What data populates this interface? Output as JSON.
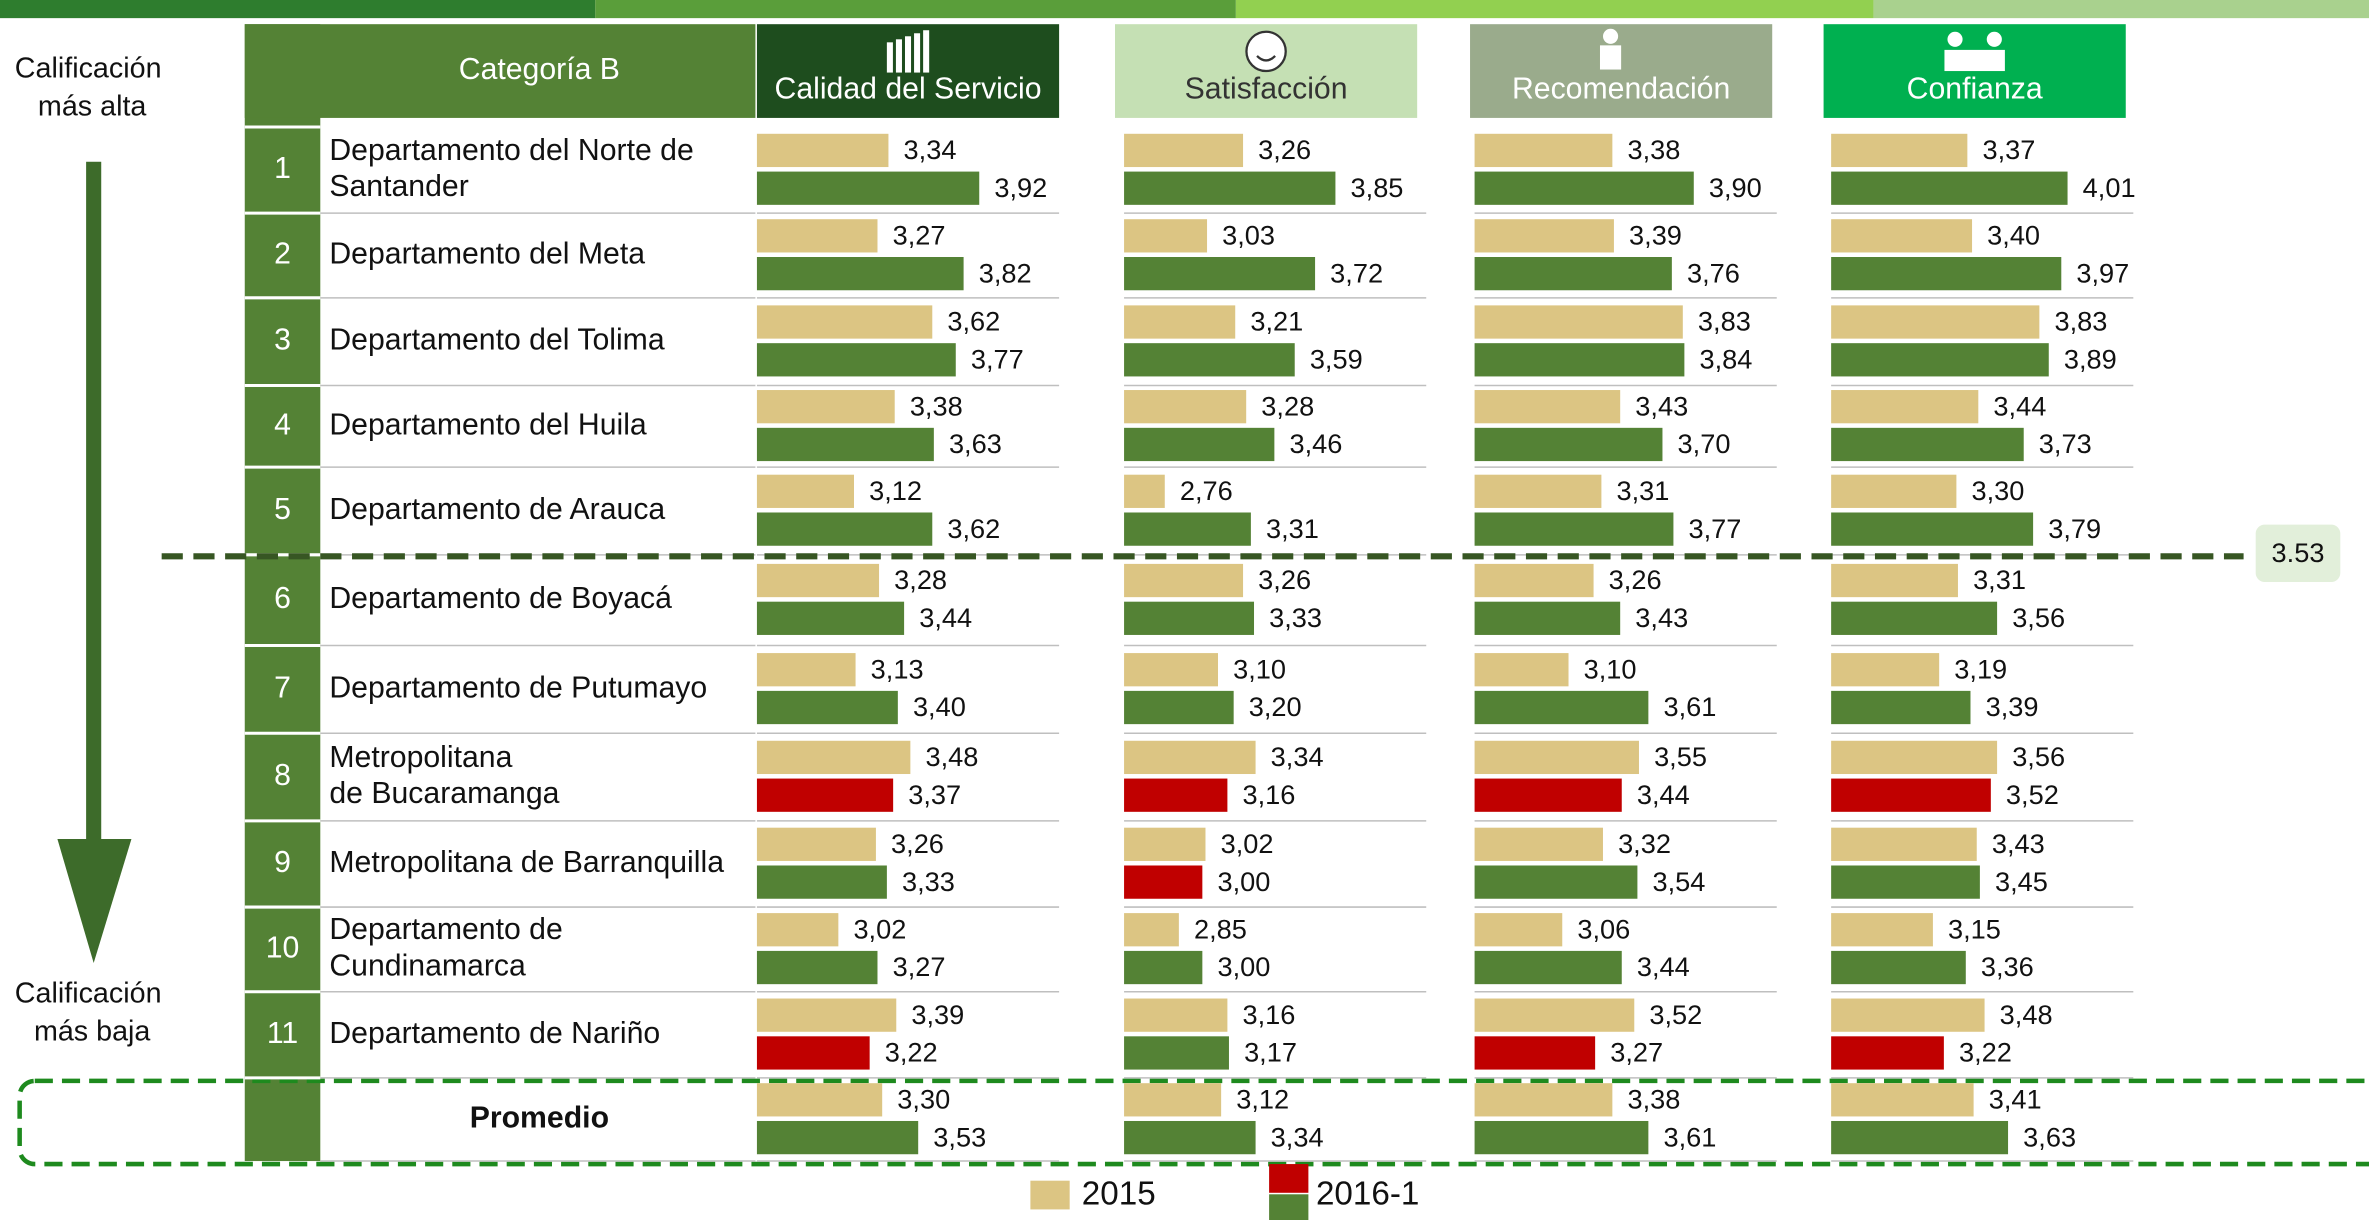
{
  "chart_data": {
    "type": "bar",
    "title": "Categoría B",
    "side_top": "Calificación más alta",
    "side_bottom": "Calificación más baja",
    "ranks": [
      1,
      2,
      3,
      4,
      5,
      6,
      7,
      8,
      9,
      10,
      11
    ],
    "categories": [
      "Departamento del Norte de Santander",
      "Departamento del Meta",
      "Departamento del Tolima",
      "Departamento del Huila",
      "Departamento de Arauca",
      "Departamento de Boyacá",
      "Departamento de Putumayo",
      "Metropolitana de Bucaramanga",
      "Metropolitana de Barranquilla",
      "Departamento de Cundinamarca",
      "Departamento de Nariño",
      "Promedio"
    ],
    "xlim": [
      2.5,
      4.43
    ],
    "threshold": 3.53,
    "series_info": [
      {
        "name": "2015",
        "color": "#dcc583"
      },
      {
        "name": "2016-1",
        "color": "#548235",
        "decline_color": "#c00000"
      }
    ],
    "panels": [
      {
        "title": "Calidad del Servicio",
        "header_color": "#1e4d1e",
        "title_color": "#ffffff",
        "series": [
          {
            "values": [
              3.34,
              3.27,
              3.62,
              3.38,
              3.12,
              3.28,
              3.13,
              3.48,
              3.26,
              3.02,
              3.39,
              3.3
            ],
            "value_labels": [
              "3,34",
              "3,27",
              "3,62",
              "3,38",
              "3,12",
              "3,28",
              "3,13",
              "3,48",
              "3,26",
              "3,02",
              "3,39",
              "3,30"
            ]
          },
          {
            "values": [
              3.92,
              3.82,
              3.77,
              3.63,
              3.62,
              3.44,
              3.4,
              3.37,
              3.33,
              3.27,
              3.22,
              3.53
            ],
            "value_labels": [
              "3,92",
              "3,82",
              "3,77",
              "3,63",
              "3,62",
              "3,44",
              "3,40",
              "3,37",
              "3,33",
              "3,27",
              "3,22",
              "3,53"
            ]
          }
        ]
      },
      {
        "title": "Satisfacción",
        "header_color": "#c5e0b4",
        "title_color": "#333333",
        "series": [
          {
            "values": [
              3.26,
              3.03,
              3.21,
              3.28,
              2.76,
              3.26,
              3.1,
              3.34,
              3.02,
              2.85,
              3.16,
              3.12
            ],
            "value_labels": [
              "3,26",
              "3,03",
              "3,21",
              "3,28",
              "2,76",
              "3,26",
              "3,10",
              "3,34",
              "3,02",
              "2,85",
              "3,16",
              "3,12"
            ]
          },
          {
            "values": [
              3.85,
              3.72,
              3.59,
              3.46,
              3.31,
              3.33,
              3.2,
              3.16,
              3.0,
              3.0,
              3.17,
              3.34
            ],
            "value_labels": [
              "3,85",
              "3,72",
              "3,59",
              "3,46",
              "3,31",
              "3,33",
              "3,20",
              "3,16",
              "3,00",
              "3,00",
              "3,17",
              "3,34"
            ]
          }
        ]
      },
      {
        "title": "Recomendación",
        "header_color": "#9aab8c",
        "title_color": "#ffffff",
        "series": [
          {
            "values": [
              3.38,
              3.39,
              3.83,
              3.43,
              3.31,
              3.26,
              3.1,
              3.55,
              3.32,
              3.06,
              3.52,
              3.38
            ],
            "value_labels": [
              "3,38",
              "3,39",
              "3,83",
              "3,43",
              "3,31",
              "3,26",
              "3,10",
              "3,55",
              "3,32",
              "3,06",
              "3,52",
              "3,38"
            ]
          },
          {
            "values": [
              3.9,
              3.76,
              3.84,
              3.7,
              3.77,
              3.43,
              3.61,
              3.44,
              3.54,
              3.44,
              3.27,
              3.61
            ],
            "value_labels": [
              "3,90",
              "3,76",
              "3,84",
              "3,70",
              "3,77",
              "3,43",
              "3,61",
              "3,44",
              "3,54",
              "3,44",
              "3,27",
              "3,61"
            ]
          }
        ]
      },
      {
        "title": "Confianza",
        "header_color": "#00b050",
        "title_color": "#ffffff",
        "series": [
          {
            "values": [
              3.37,
              3.4,
              3.83,
              3.44,
              3.3,
              3.31,
              3.19,
              3.56,
              3.43,
              3.15,
              3.48,
              3.41
            ],
            "value_labels": [
              "3,37",
              "3,40",
              "3,83",
              "3,44",
              "3,30",
              "3,31",
              "3,19",
              "3,56",
              "3,43",
              "3,15",
              "3,48",
              "3,41"
            ]
          },
          {
            "values": [
              4.01,
              3.97,
              3.89,
              3.73,
              3.79,
              3.56,
              3.39,
              3.52,
              3.45,
              3.36,
              3.22,
              3.63
            ],
            "value_labels": [
              "4,01",
              "3,97",
              "3,89",
              "3,73",
              "3,79",
              "3,56",
              "3,39",
              "3,52",
              "3,45",
              "3,36",
              "3,22",
              "3,63"
            ]
          }
        ]
      }
    ]
  }
}
